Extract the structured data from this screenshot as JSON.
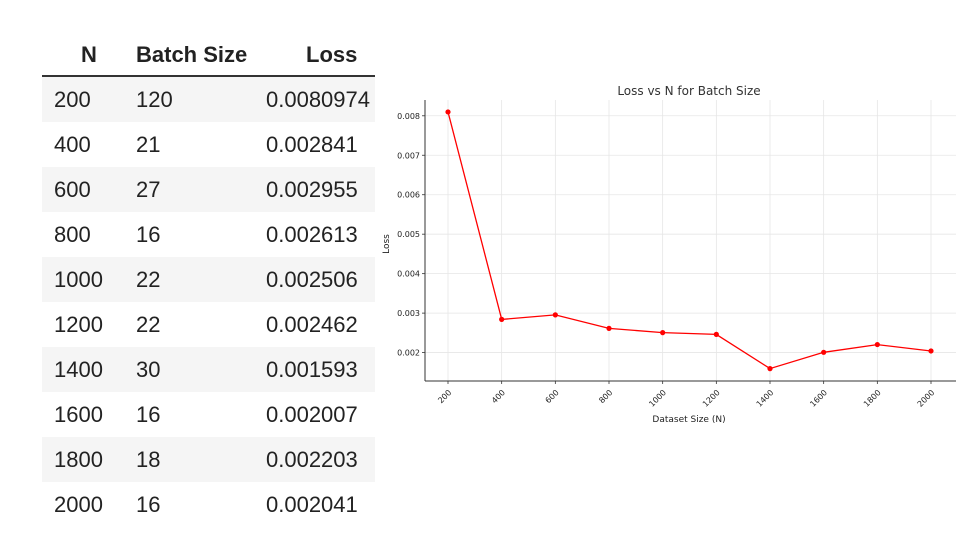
{
  "table": {
    "headers": [
      "N",
      "Batch Size",
      "Loss"
    ],
    "rows": [
      [
        "200",
        "120",
        "0.0080974"
      ],
      [
        "400",
        "21",
        "0.002841"
      ],
      [
        "600",
        "27",
        "0.002955"
      ],
      [
        "800",
        "16",
        "0.002613"
      ],
      [
        "1000",
        "22",
        "0.002506"
      ],
      [
        "1200",
        "22",
        "0.002462"
      ],
      [
        "1400",
        "30",
        "0.001593"
      ],
      [
        "1600",
        "16",
        "0.002007"
      ],
      [
        "1800",
        "18",
        "0.002203"
      ],
      [
        "2000",
        "16",
        "0.002041"
      ]
    ]
  },
  "chart_data": {
    "type": "line",
    "title": "Loss vs N for Batch Size",
    "xlabel": "Dataset Size (N)",
    "ylabel": "Loss",
    "categories": [
      "200",
      "400",
      "600",
      "800",
      "1000",
      "1200",
      "1400",
      "1600",
      "1800",
      "2000"
    ],
    "series": [
      {
        "values": [
          0.0080974,
          0.002841,
          0.002955,
          0.002613,
          0.002506,
          0.002462,
          0.001593,
          0.002007,
          0.002203,
          0.002041
        ],
        "color": "#ff0000"
      }
    ],
    "yticks": [
      "0.002",
      "0.003",
      "0.004",
      "0.005",
      "0.006",
      "0.007",
      "0.008"
    ],
    "ylim": [
      0.00128,
      0.0084
    ],
    "grid": true
  }
}
